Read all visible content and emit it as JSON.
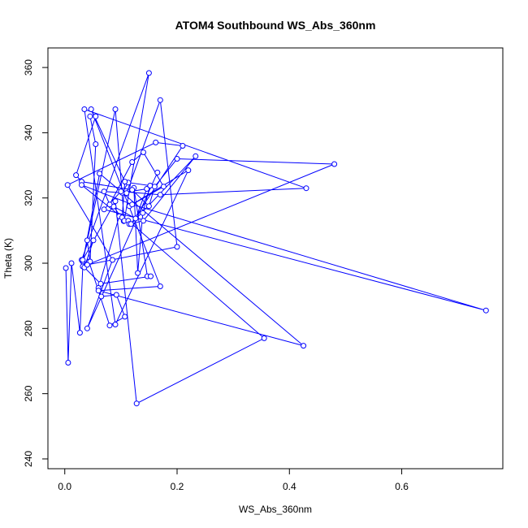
{
  "chart_data": {
    "type": "line",
    "title": "ATOM4 Southbound WS_Abs_360nm",
    "xlabel": "WS_Abs_360nm",
    "ylabel": "Theta (K)",
    "xlim": [
      -0.03,
      0.78
    ],
    "ylim": [
      237,
      366
    ],
    "x_ticks": [
      0.0,
      0.2,
      0.4,
      0.6
    ],
    "x_tick_labels": [
      "0.0",
      "0.2",
      "0.4",
      "0.6"
    ],
    "y_ticks": [
      240,
      260,
      280,
      300,
      320,
      340,
      360
    ],
    "y_tick_labels": [
      "240",
      "260",
      "280",
      "300",
      "320",
      "340",
      "360"
    ],
    "grid": false,
    "line_color": "#0000ff",
    "marker": "open-circle",
    "series": [
      {
        "x": [
          0.002,
          0.006,
          0.012,
          0.027,
          0.032,
          0.043,
          0.08,
          0.107,
          0.092,
          0.065,
          0.06,
          0.097,
          0.105,
          0.087,
          0.126,
          0.146,
          0.102,
          0.113,
          0.152,
          0.139,
          0.13,
          0.123,
          0.147,
          0.153,
          0.064,
          0.035,
          0.051,
          0.04,
          0.045,
          0.055,
          0.045,
          0.055,
          0.02,
          0.03,
          0.12,
          0.15,
          0.16,
          0.2,
          0.48,
          0.04,
          0.2,
          0.17,
          0.11,
          0.07,
          0.08,
          0.12,
          0.14,
          0.176,
          0.115,
          0.22,
          0.09,
          0.035,
          0.43,
          0.17,
          0.1,
          0.07,
          0.75,
          0.12,
          0.03,
          0.102,
          0.107,
          0.047,
          0.17,
          0.06,
          0.425,
          0.062,
          0.032,
          0.09,
          0.106,
          0.15,
          0.03,
          0.032,
          0.09,
          0.128,
          0.355,
          0.113,
          0.115,
          0.14,
          0.233,
          0.118,
          0.21,
          0.162,
          0.005,
          0.085,
          0.04,
          0.165
        ],
        "y": [
          298.5,
          269.5,
          300.0,
          278.7,
          299.0,
          300.5,
          280.9,
          283.6,
          290.3,
          289.8,
          292.4,
          314.4,
          312.9,
          317.4,
          313.7,
          322.8,
          321.6,
          324.7,
          323.8,
          315.4,
          297.0,
          323.1,
          296.0,
          296.0,
          293.7,
          298.7,
          307.0,
          307.0,
          300.5,
          336.5,
          345.0,
          345.0,
          327.0,
          325.0,
          322.5,
          317.5,
          323.5,
          332.0,
          330.4,
          299.5,
          305.0,
          350.0,
          321.5,
          322.0,
          318.0,
          331.0,
          334.0,
          323.5,
          317.5,
          328.5,
          281.2,
          347.2,
          323.0,
          321.0,
          322.0,
          316.5,
          285.5,
          318.0,
          324.0,
          314.0,
          325.0,
          347.2,
          292.9,
          291.6,
          274.7,
          327.5,
          300.5,
          347.2,
          313.0,
          358.3,
          301.0,
          301.0,
          319.0,
          257.0,
          277.0,
          313.0,
          312.0,
          313.0,
          332.8,
          312.0,
          336.0,
          337.0,
          324.0,
          301.0,
          280.0,
          327.8
        ]
      }
    ]
  }
}
